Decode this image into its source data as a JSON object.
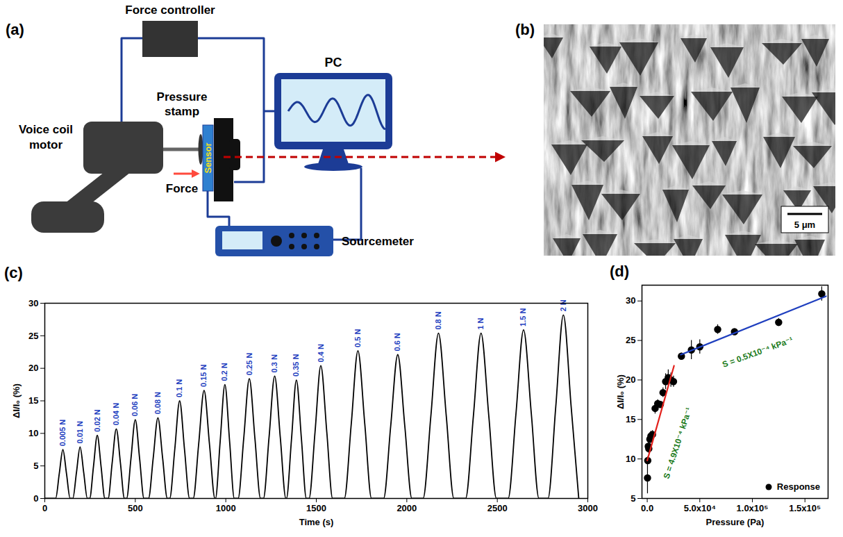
{
  "panels": {
    "a": "(a)",
    "b": "(b)",
    "c": "(c)",
    "d": "(d)"
  },
  "diagram": {
    "labels": {
      "force_controller": "Force controller",
      "voice_coil_motor": "Voice coil motor",
      "pressure_stamp": "Pressure stamp",
      "sensor": "Sensor",
      "force": "Force",
      "pc": "PC",
      "sourcemeter": "Sourcemeter"
    }
  },
  "image": {
    "scale_bar": "5 μm"
  },
  "chart_data": [
    {
      "type": "line",
      "x_label": "Time (s)",
      "y_label": "ΔI/I₀ (%)",
      "color": "#000000",
      "x": [
        0,
        60,
        80,
        100,
        120,
        140,
        155,
        175,
        195,
        215,
        235,
        248,
        269,
        290,
        311,
        332,
        350,
        372,
        395,
        418,
        440,
        452,
        476,
        500,
        524,
        548,
        573,
        599,
        625,
        651,
        677,
        690,
        718,
        745,
        772,
        800,
        820,
        850,
        880,
        910,
        940,
        943,
        969,
        995,
        1021,
        1047,
        1068,
        1099,
        1130,
        1161,
        1192,
        1208,
        1239,
        1270,
        1301,
        1332,
        1335,
        1363,
        1390,
        1418,
        1445,
        1460,
        1493,
        1525,
        1558,
        1590,
        1655,
        1693,
        1730,
        1768,
        1805,
        1872,
        1911,
        1950,
        1989,
        2028,
        2090,
        2133,
        2175,
        2218,
        2260,
        2325,
        2368,
        2410,
        2453,
        2495,
        2560,
        2603,
        2645,
        2688,
        2730,
        2780,
        2823,
        2865,
        2908,
        2950
      ],
      "values": [
        0,
        0,
        3.8,
        7.5,
        3.8,
        0,
        0,
        4.0,
        7.9,
        4.0,
        0,
        0,
        4.9,
        9.7,
        4.9,
        0,
        0,
        5.4,
        10.7,
        5.4,
        0,
        0,
        6.1,
        12.1,
        6.1,
        0,
        0,
        6.2,
        12.4,
        6.2,
        0,
        0,
        7.5,
        15.0,
        7.5,
        0,
        0,
        8.3,
        16.6,
        8.3,
        0,
        0,
        8.8,
        17.5,
        8.8,
        0,
        0,
        9.2,
        18.4,
        9.2,
        0,
        0,
        9.4,
        18.8,
        9.4,
        0,
        0,
        9.1,
        18.2,
        9.1,
        0,
        0,
        10.2,
        20.4,
        10.2,
        0,
        0,
        11.4,
        22.7,
        11.4,
        0,
        0,
        11.1,
        22.1,
        11.1,
        0,
        0,
        12.7,
        25.4,
        12.7,
        0,
        0,
        12.7,
        25.4,
        12.7,
        0,
        0,
        13.0,
        25.9,
        13.0,
        0,
        0,
        14.1,
        28.2,
        14.1,
        0
      ],
      "xlim": [
        0,
        3000
      ],
      "xticks": [
        0,
        500,
        1000,
        1500,
        2000,
        2500,
        3000
      ],
      "ylim": [
        0,
        30
      ],
      "yticks": [
        0,
        5,
        10,
        15,
        20,
        25,
        30
      ],
      "annotations": [
        {
          "x": 100,
          "y": 7.5,
          "text": "0.005 N"
        },
        {
          "x": 195,
          "y": 7.9,
          "text": "0.01 N"
        },
        {
          "x": 290,
          "y": 9.7,
          "text": "0.02 N"
        },
        {
          "x": 395,
          "y": 10.7,
          "text": "0.04 N"
        },
        {
          "x": 500,
          "y": 12.1,
          "text": "0.06 N"
        },
        {
          "x": 625,
          "y": 12.4,
          "text": "0.08 N"
        },
        {
          "x": 745,
          "y": 15.0,
          "text": "0.1 N"
        },
        {
          "x": 880,
          "y": 16.6,
          "text": "0.15 N"
        },
        {
          "x": 995,
          "y": 17.5,
          "text": "0.2 N"
        },
        {
          "x": 1130,
          "y": 18.4,
          "text": "0.25 N"
        },
        {
          "x": 1270,
          "y": 18.8,
          "text": "0.3 N"
        },
        {
          "x": 1390,
          "y": 18.2,
          "text": "0.35 N"
        },
        {
          "x": 1525,
          "y": 20.4,
          "text": "0.4 N"
        },
        {
          "x": 1730,
          "y": 22.7,
          "text": "0.5 N"
        },
        {
          "x": 1950,
          "y": 22.1,
          "text": "0.6 N"
        },
        {
          "x": 2175,
          "y": 25.4,
          "text": "0.8 N"
        },
        {
          "x": 2410,
          "y": 25.4,
          "text": "1 N"
        },
        {
          "x": 2645,
          "y": 25.9,
          "text": "1.5 N"
        },
        {
          "x": 2865,
          "y": 28.2,
          "text": "2 N"
        }
      ]
    },
    {
      "type": "scatter",
      "x_label": "Pressure (Pa)",
      "y_label": "ΔI/I₀ (%)",
      "xlim": [
        -5000,
        172000
      ],
      "xticks": [
        {
          "value": 0,
          "label": "0.0"
        },
        {
          "value": 50000,
          "label": "5.0x10⁴"
        },
        {
          "value": 100000,
          "label": "1.0x10⁵"
        },
        {
          "value": 150000,
          "label": "1.5x10⁵"
        }
      ],
      "ylim": [
        5,
        32
      ],
      "yticks": [
        5,
        10,
        15,
        20,
        25,
        30
      ],
      "legend": "lower right",
      "series": [
        {
          "name": "Response",
          "type": "scatter",
          "marker": "circle",
          "color": "#000000",
          "x": [
            250,
            500,
            1000,
            1500,
            2500,
            3500,
            5000,
            7500,
            10000,
            12500,
            15000,
            17500,
            20000,
            22500,
            25000,
            32500,
            42000,
            50000,
            67000,
            83000,
            125000,
            166000
          ],
          "values": [
            7.6,
            9.8,
            11.6,
            11.3,
            12.5,
            12.9,
            13.1,
            16.4,
            17.0,
            16.9,
            18.4,
            19.8,
            20.3,
            20.0,
            19.8,
            23.0,
            23.8,
            24.2,
            26.4,
            26.1,
            27.3,
            30.9
          ],
          "errors": [
            2.0,
            0.5,
            0.8,
            0.6,
            0.8,
            0.6,
            0.5,
            0.7,
            0.5,
            0.4,
            0.6,
            1.0,
            1.0,
            0.9,
            0.7,
            0.4,
            1.2,
            0.9,
            0.6,
            0.3,
            0.5,
            0.9
          ]
        },
        {
          "type": "line",
          "color": "#e3211c",
          "x": [
            0,
            25500
          ],
          "values": [
            9.8,
            21.8
          ]
        },
        {
          "type": "line",
          "color": "#1f3fbf",
          "x": [
            32000,
            170000
          ],
          "values": [
            23.2,
            30.6
          ]
        }
      ],
      "annotations": [
        {
          "text": "S = 4.9X10⁻⁴ kPa⁻¹",
          "x": 29000,
          "y": 12,
          "color": "#1a7a1a"
        },
        {
          "text": "S = 0.5X10⁻⁴ kPa⁻¹",
          "x": 105000,
          "y": 23.5,
          "color": "#1a7a1a"
        }
      ]
    }
  ]
}
